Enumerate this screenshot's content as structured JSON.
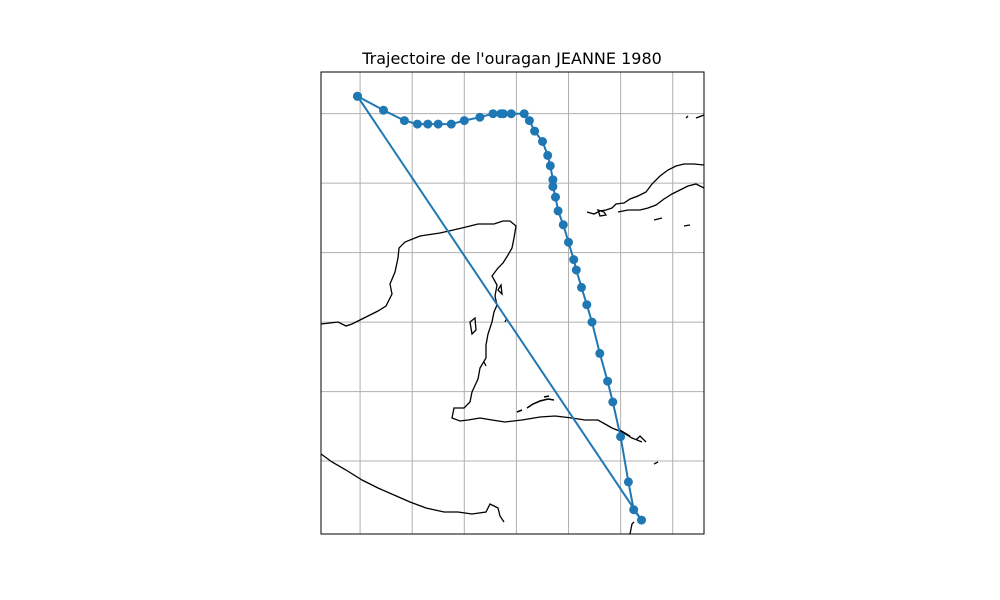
{
  "title": "Trajectoire de l'ouragan JEANNE 1980",
  "colors": {
    "track": "#1f77b4",
    "coast": "#000000",
    "grid": "#b0b0b0",
    "frame": "#000000"
  },
  "map": {
    "grid": true,
    "extent": {
      "lon": [
        -92.8,
        -78.1
      ],
      "lat": [
        14.3,
        27.6
      ]
    },
    "grid_lon": [
      -91.3,
      -89.3,
      -87.3,
      -85.3,
      -83.3,
      -81.3,
      -79.3
    ],
    "grid_lat": [
      26.4,
      24.4,
      22.4,
      20.4,
      18.4,
      16.4
    ]
  },
  "chart_data": {
    "type": "scatter",
    "connected": true,
    "track": [
      [
        -91.4,
        26.9
      ],
      [
        -90.4,
        26.5
      ],
      [
        -89.6,
        26.2
      ],
      [
        -89.1,
        26.1
      ],
      [
        -88.7,
        26.1
      ],
      [
        -88.3,
        26.1
      ],
      [
        -87.8,
        26.1
      ],
      [
        -87.3,
        26.2
      ],
      [
        -86.7,
        26.3
      ],
      [
        -86.2,
        26.4
      ],
      [
        -85.9,
        26.4
      ],
      [
        -85.8,
        26.4
      ],
      [
        -85.5,
        26.4
      ],
      [
        -85.0,
        26.4
      ],
      [
        -84.8,
        26.2
      ],
      [
        -84.6,
        25.9
      ],
      [
        -84.3,
        25.6
      ],
      [
        -84.1,
        25.2
      ],
      [
        -84.0,
        24.9
      ],
      [
        -83.9,
        24.5
      ],
      [
        -83.9,
        24.3
      ],
      [
        -83.8,
        24.0
      ],
      [
        -83.7,
        23.6
      ],
      [
        -83.5,
        23.2
      ],
      [
        -83.3,
        22.7
      ],
      [
        -83.1,
        22.2
      ],
      [
        -83.0,
        21.9
      ],
      [
        -82.8,
        21.4
      ],
      [
        -82.6,
        20.9
      ],
      [
        -82.4,
        20.4
      ],
      [
        -82.1,
        19.5
      ],
      [
        -81.8,
        18.7
      ],
      [
        -81.6,
        18.1
      ],
      [
        -81.3,
        17.1
      ],
      [
        -81.0,
        15.8
      ],
      [
        -80.8,
        15.0
      ],
      [
        -80.5,
        14.7
      ],
      [
        -91.4,
        26.9
      ]
    ]
  }
}
